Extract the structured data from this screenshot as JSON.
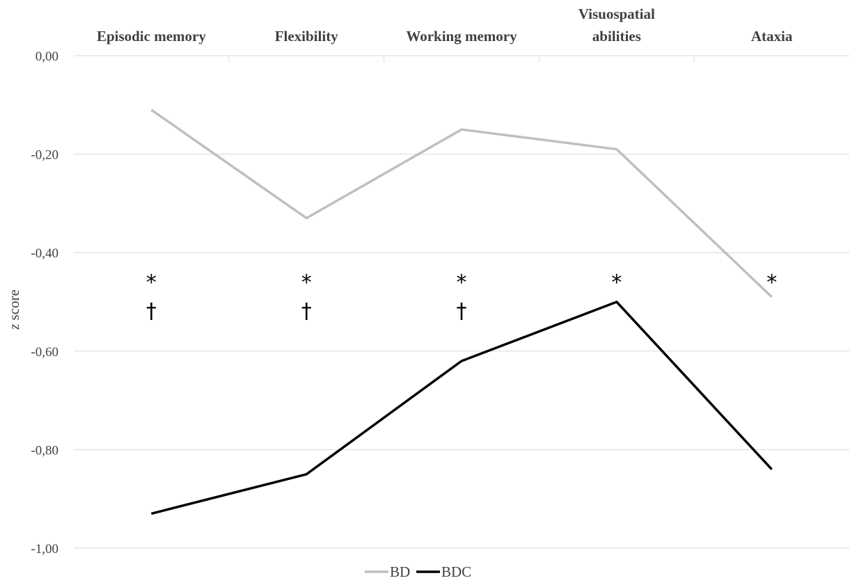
{
  "chart_data": {
    "type": "line",
    "categories": [
      [
        "Episodic memory"
      ],
      [
        "Flexibility"
      ],
      [
        "Working memory"
      ],
      [
        "Visuospatial",
        "abilities"
      ],
      [
        "Ataxia"
      ]
    ],
    "ylabel_italic": "z",
    "ylabel_rest": " score",
    "ylim": [
      -1.0,
      0.0
    ],
    "yticks": [
      0.0,
      -0.2,
      -0.4,
      -0.6,
      -0.8,
      -1.0
    ],
    "ytick_labels": [
      "0,00",
      "-0,20",
      "-0,40",
      "-0,60",
      "-0,80",
      "-1,00"
    ],
    "series": [
      {
        "name": "BD",
        "color": "#bfbfbf",
        "values": [
          -0.11,
          -0.33,
          -0.15,
          -0.19,
          -0.49
        ]
      },
      {
        "name": "BDC",
        "color": "#000000",
        "values": [
          -0.93,
          -0.85,
          -0.62,
          -0.5,
          -0.84
        ]
      }
    ],
    "significance": {
      "star": "*",
      "dagger": "†",
      "stars": [
        true,
        true,
        true,
        true,
        true
      ],
      "daggers": [
        true,
        true,
        true,
        false,
        false
      ]
    },
    "legend_position": "bottom-center",
    "x_axis_position": "top",
    "grid": true
  }
}
